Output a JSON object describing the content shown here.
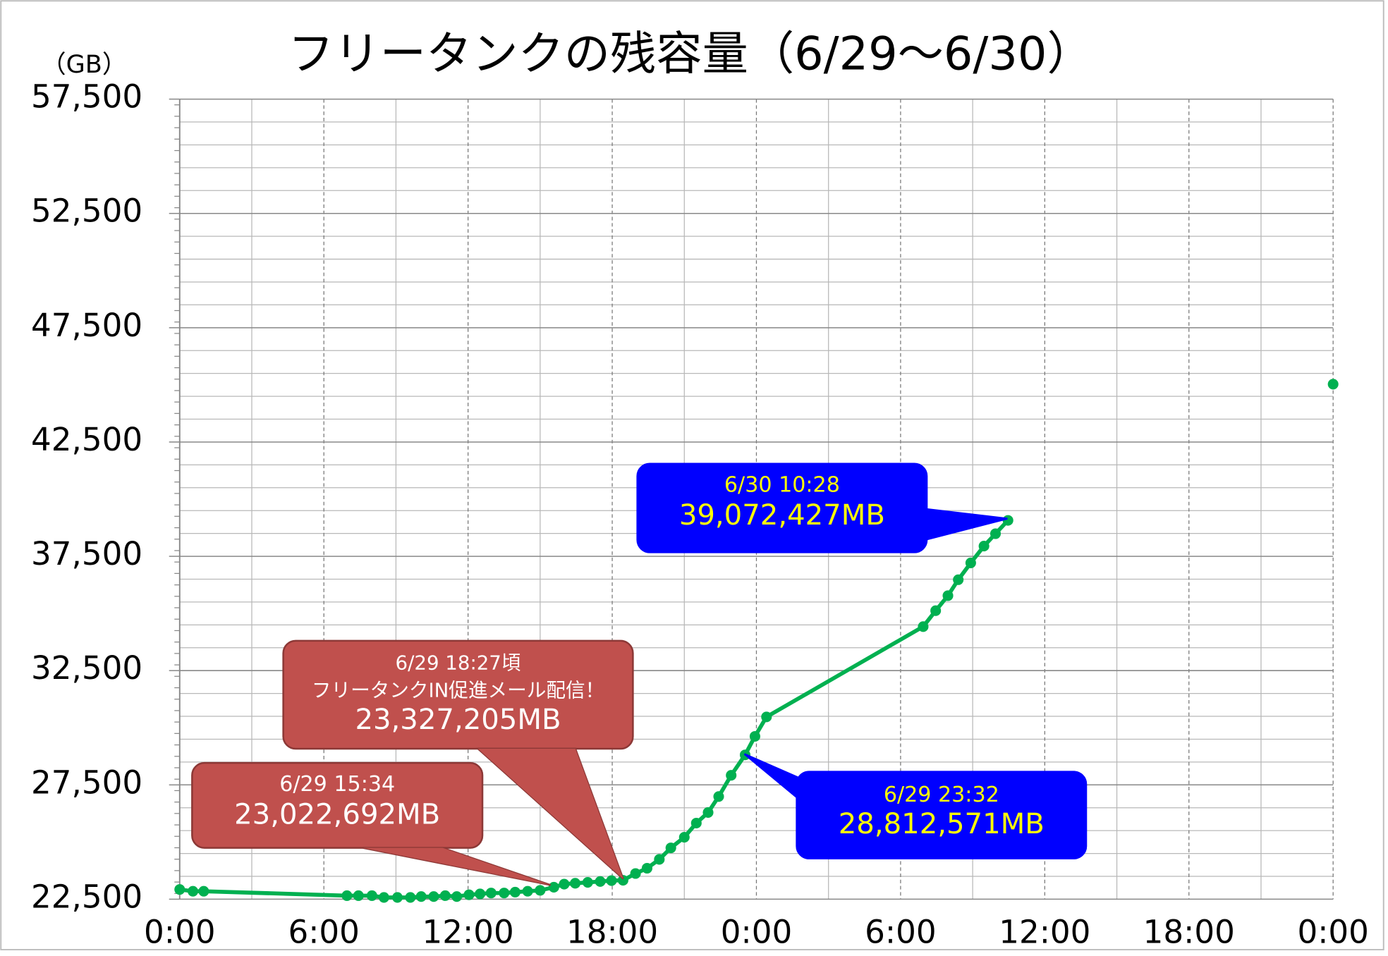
{
  "chart_data": {
    "type": "line",
    "title": "フリータンクの残容量（6/29～6/30）",
    "y_unit": "（GB）",
    "x": [
      0,
      0.55,
      1.0,
      6.96,
      7.44,
      8.0,
      8.5,
      9.06,
      9.6,
      10.05,
      10.57,
      11.05,
      11.53,
      12.04,
      12.5,
      12.96,
      13.5,
      13.96,
      14.48,
      15.0,
      15.57,
      16.0,
      16.46,
      16.98,
      17.5,
      17.97,
      18.45,
      18.97,
      19.45,
      19.96,
      20.44,
      21.0,
      21.5,
      21.99,
      22.43,
      22.95,
      23.53,
      23.94,
      24.42,
      30.94,
      31.46,
      31.97,
      32.4,
      32.92,
      33.47,
      33.95,
      34.47,
      null,
      48.0
    ],
    "series": [
      {
        "name": "残容量",
        "color": "#00b050",
        "values": [
          22926,
          22848,
          22848,
          22655,
          22655,
          22655,
          22577,
          22577,
          22577,
          22616,
          22616,
          22655,
          22616,
          22694,
          22732,
          22771,
          22771,
          22810,
          22848,
          22887,
          23023,
          23158,
          23197,
          23236,
          23274,
          23313,
          23327,
          23623,
          23855,
          24242,
          24745,
          25210,
          25829,
          26294,
          26991,
          27920,
          28813,
          29623,
          30475,
          34424,
          35121,
          35779,
          36476,
          37212,
          37947,
          38489,
          39072,
          null,
          45030
        ]
      }
    ],
    "xlim": [
      0,
      48
    ],
    "xticks": [
      {
        "value": 0,
        "label": "0:00"
      },
      {
        "value": 6,
        "label": "6:00"
      },
      {
        "value": 12,
        "label": "12:00"
      },
      {
        "value": 18,
        "label": "18:00"
      },
      {
        "value": 24,
        "label": "0:00"
      },
      {
        "value": 30,
        "label": "6:00"
      },
      {
        "value": 36,
        "label": "12:00"
      },
      {
        "value": 42,
        "label": "18:00"
      },
      {
        "value": 48,
        "label": "0:00"
      }
    ],
    "ylim": [
      22500,
      57500
    ],
    "yticks": [
      {
        "value": 22500,
        "label": "22,500"
      },
      {
        "value": 27500,
        "label": "27,500"
      },
      {
        "value": 32500,
        "label": "32,500"
      },
      {
        "value": 37500,
        "label": "37,500"
      },
      {
        "value": 42500,
        "label": "42,500"
      },
      {
        "value": 47500,
        "label": "47,500"
      },
      {
        "value": 52500,
        "label": "52,500"
      },
      {
        "value": 57500,
        "label": "57,500"
      }
    ],
    "grid": true,
    "annotations": [
      {
        "style": "red",
        "lines": [
          "6/29 15:34",
          "23,022,692MB"
        ]
      },
      {
        "style": "red",
        "lines": [
          "6/29 18:27頃",
          "フリータンクIN促進メール配信！",
          "23,327,205MB"
        ]
      },
      {
        "style": "blue",
        "lines": [
          "6/29 23:32",
          "28,812,571MB"
        ]
      },
      {
        "style": "blue",
        "lines": [
          "6/30 10:28",
          "39,072,427MB"
        ]
      }
    ]
  }
}
